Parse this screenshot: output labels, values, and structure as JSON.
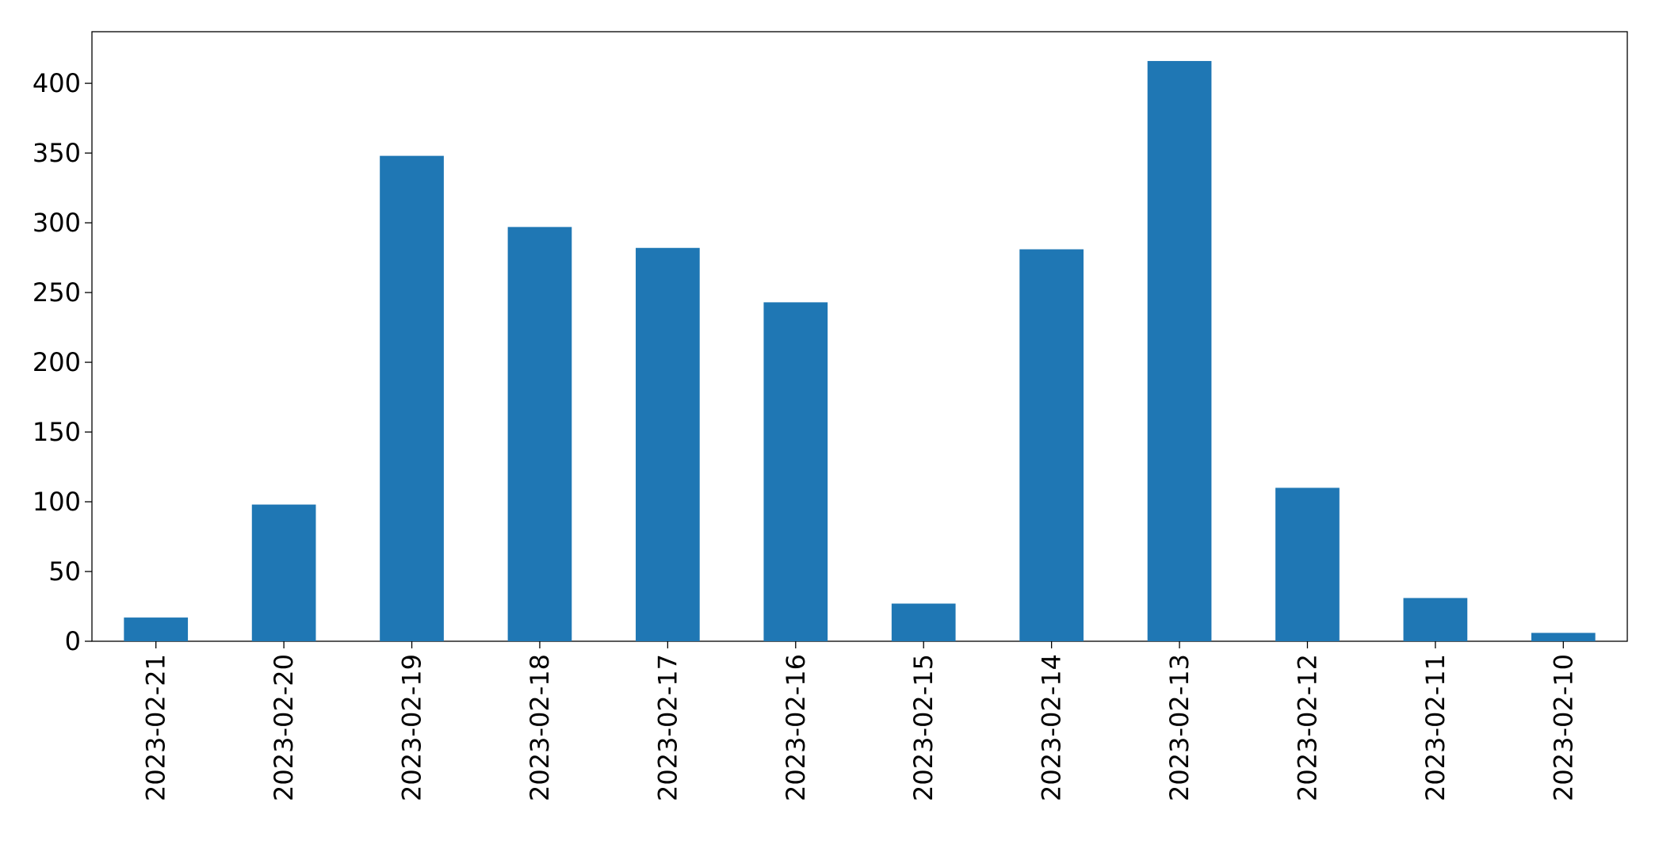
{
  "chart_data": {
    "type": "bar",
    "categories": [
      "2023-02-21",
      "2023-02-20",
      "2023-02-19",
      "2023-02-18",
      "2023-02-17",
      "2023-02-16",
      "2023-02-15",
      "2023-02-14",
      "2023-02-13",
      "2023-02-12",
      "2023-02-11",
      "2023-02-10"
    ],
    "values": [
      17,
      98,
      348,
      297,
      282,
      243,
      27,
      281,
      416,
      110,
      31,
      6
    ],
    "color": "#1f77b4",
    "ylim": [
      0,
      437
    ],
    "yticks": [
      0,
      50,
      100,
      150,
      200,
      250,
      300,
      350,
      400
    ],
    "grid": false
  }
}
